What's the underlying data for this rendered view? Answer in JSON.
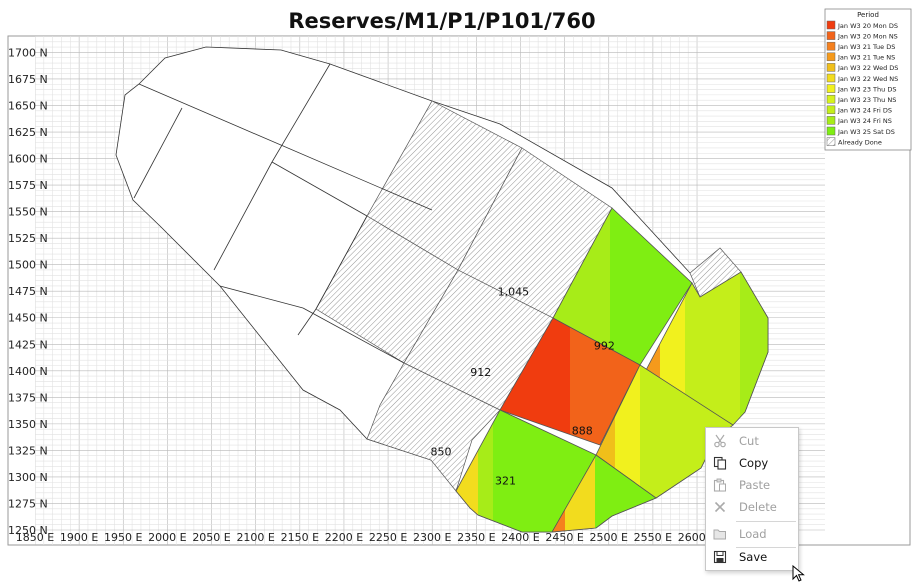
{
  "title": "Reserves/M1/P1/P101/760",
  "chart_data": {
    "type": "map",
    "xlabel": "",
    "ylabel": "",
    "x_unit": "E",
    "y_unit": "N",
    "xlim": [
      1850,
      2600
    ],
    "ylim": [
      1250,
      1715
    ],
    "x_ticks": [
      1850,
      1900,
      1950,
      2000,
      2050,
      2100,
      2150,
      2200,
      2250,
      2300,
      2350,
      2400,
      2450,
      2500,
      2550,
      2600
    ],
    "y_ticks": [
      1250,
      1275,
      1300,
      1325,
      1350,
      1375,
      1400,
      1425,
      1450,
      1475,
      1500,
      1525,
      1550,
      1575,
      1600,
      1625,
      1650,
      1675,
      1700
    ],
    "x_tick_labels": [
      "1850 E",
      "1900 E",
      "1950 E",
      "2000 E",
      "2050 E",
      "2100 E",
      "2150 E",
      "2200 E",
      "2250 E",
      "2300 E",
      "2350 E",
      "2400 E",
      "2450 E",
      "2500 E",
      "2550 E",
      "2600 E"
    ],
    "y_tick_labels": [
      "1250 N",
      "1275 N",
      "1300 N",
      "1325 N",
      "1350 N",
      "1375 N",
      "1400 N",
      "1425 N",
      "1450 N",
      "1475 N",
      "1500 N",
      "1525 N",
      "1550 N",
      "1575 N",
      "1600 N",
      "1625 N",
      "1650 N",
      "1675 N",
      "1700 N"
    ],
    "grid": true,
    "legend_position": "top-right",
    "legend": {
      "title": "Period",
      "entries": [
        {
          "label": "Jan W3 20 Mon DS",
          "color": "#f03c0f"
        },
        {
          "label": "Jan W3 20 Mon NS",
          "color": "#f2631a"
        },
        {
          "label": "Jan W3 21 Tue DS",
          "color": "#f5801e"
        },
        {
          "label": "Jan W3 21 Tue NS",
          "color": "#f59a1c"
        },
        {
          "label": "Jan W3 22 Wed DS",
          "color": "#f0bf1a"
        },
        {
          "label": "Jan W3 22 Wed NS",
          "color": "#f2dc1e"
        },
        {
          "label": "Jan W3 23 Thu DS",
          "color": "#f1f11e"
        },
        {
          "label": "Jan W3 23 Thu NS",
          "color": "#d6f21c"
        },
        {
          "label": "Jan W3 24 Fri DS",
          "color": "#c4ee1a"
        },
        {
          "label": "Jan W3 24 Fri NS",
          "color": "#a7ec18"
        },
        {
          "label": "Jan W3 25 Sat DS",
          "color": "#7fee12"
        },
        {
          "label": "Already Done",
          "color": "hatched"
        }
      ]
    },
    "blocks": [
      {
        "label": "1,045",
        "x": 2392,
        "y": 1471
      },
      {
        "label": "992",
        "x": 2495,
        "y": 1420
      },
      {
        "label": "912",
        "x": 2355,
        "y": 1395
      },
      {
        "label": "888",
        "x": 2470,
        "y": 1340
      },
      {
        "label": "850",
        "x": 2310,
        "y": 1320
      },
      {
        "label": "321",
        "x": 2383,
        "y": 1293
      }
    ]
  },
  "context_menu": {
    "items": [
      {
        "label": "Cut",
        "icon": "scissors-icon",
        "enabled": false
      },
      {
        "label": "Copy",
        "icon": "copy-icon",
        "enabled": true
      },
      {
        "label": "Paste",
        "icon": "paste-icon",
        "enabled": false
      },
      {
        "label": "Delete",
        "icon": "delete-icon",
        "enabled": false
      },
      {
        "label": "Load",
        "icon": "folder-icon",
        "enabled": false
      },
      {
        "label": "Save",
        "icon": "save-icon",
        "enabled": true,
        "highlighted": true
      }
    ]
  }
}
